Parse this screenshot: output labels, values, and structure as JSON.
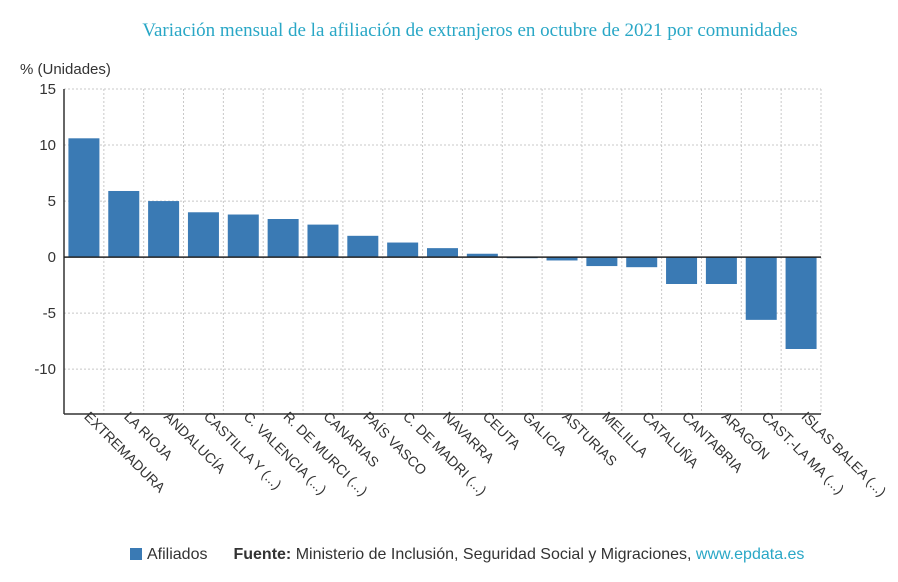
{
  "chart_data": {
    "type": "bar",
    "title": "Variación mensual de la afiliación de extranjeros en octubre de 2021 por comunidades",
    "ylabel": "% (Unidades)",
    "ylim": [
      -14,
      15
    ],
    "yticks": [
      15,
      10,
      5,
      0,
      -5,
      -10
    ],
    "grid": true,
    "legend_position": "bottom",
    "categories": [
      "EXTREMADURA",
      "LA RIOJA",
      "ANDALUCÍA",
      "CASTILLA Y (...)",
      "C. VALENCIA (...)",
      "R. DE MURCI (...)",
      "CANARIAS",
      "PAÍS VASCO",
      "C. DE MADRI (...)",
      "NAVARRA",
      "CEUTA",
      "GALICIA",
      "ASTURIAS",
      "MELILLA",
      "CATALUÑA",
      "CANTABRIA",
      "ARAGÓN",
      "CAST.-LA MA (...)",
      "ISLAS BALEA (...)"
    ],
    "series": [
      {
        "name": "Afiliados",
        "color": "#3a7ab4",
        "values": [
          10.6,
          5.9,
          5.0,
          4.0,
          3.8,
          3.4,
          2.9,
          1.9,
          1.3,
          0.8,
          0.3,
          -0.1,
          -0.3,
          -0.8,
          -0.9,
          -2.4,
          -2.4,
          -5.6,
          -8.2
        ]
      }
    ]
  },
  "footer": {
    "legend_label": "Afiliados",
    "source_prefix": "Fuente:",
    "source_text": "Ministerio de Inclusión, Seguridad Social y Migraciones,",
    "source_link": "www.epdata.es"
  }
}
